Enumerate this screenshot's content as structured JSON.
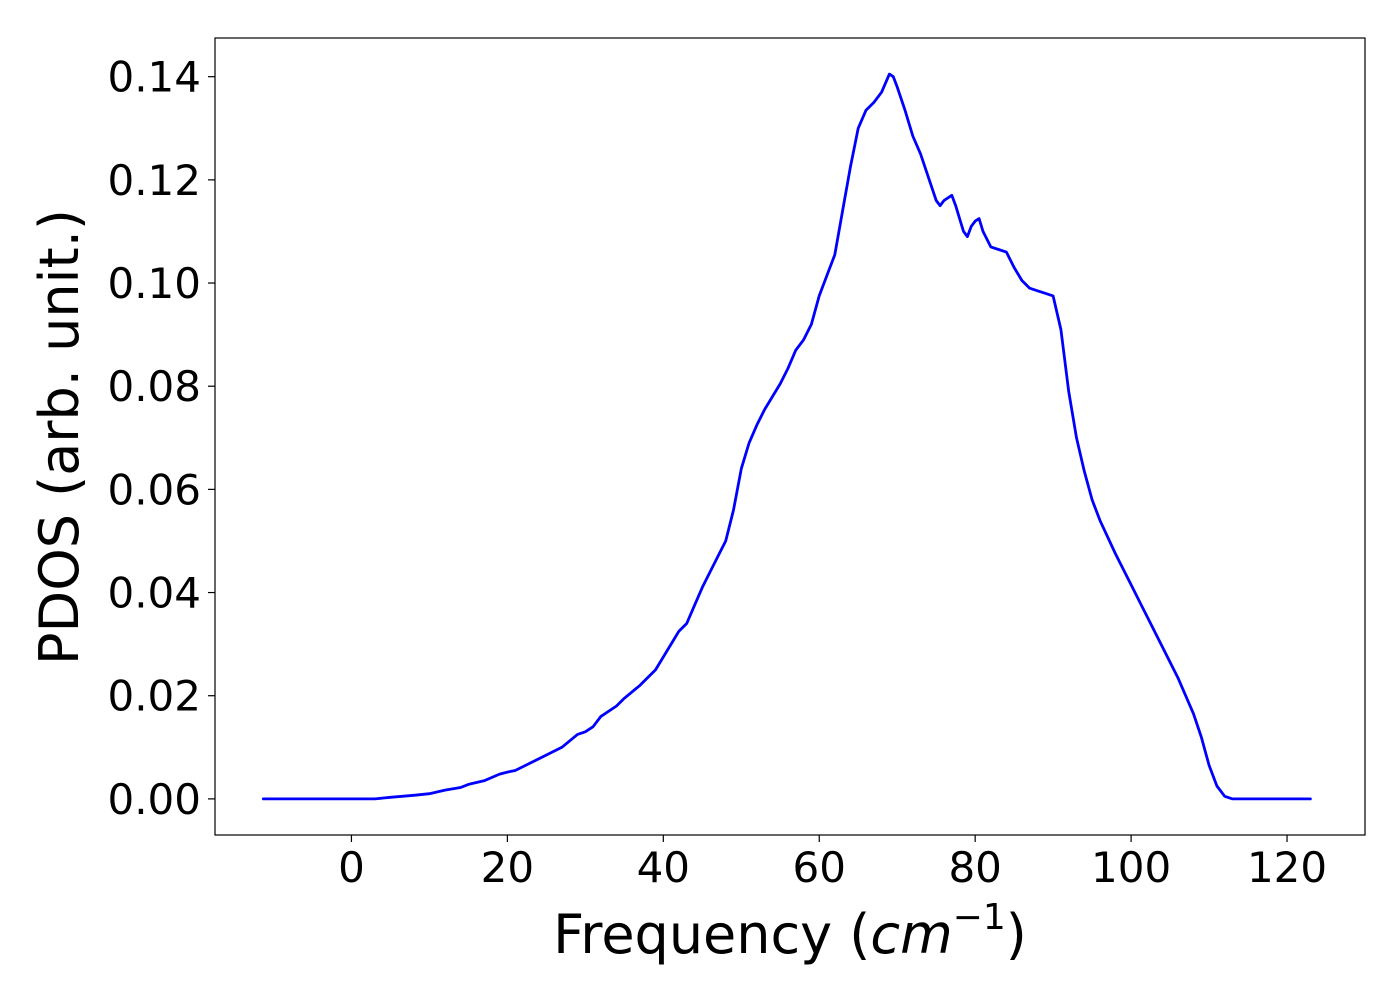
{
  "chart_data": {
    "type": "line",
    "title": "",
    "xlabel": "Frequency (",
    "xlabel_math": "cm",
    "xlabel_sup": "−1",
    "xlabel_end": ")",
    "ylabel": "PDOS (arb. unit.)",
    "xlim": [
      -17.5,
      130
    ],
    "ylim": [
      -0.007,
      0.1475
    ],
    "xticks": [
      0,
      20,
      40,
      60,
      80,
      100,
      120
    ],
    "xtick_labels": [
      "0",
      "20",
      "40",
      "60",
      "80",
      "100",
      "120"
    ],
    "yticks": [
      0.0,
      0.02,
      0.04,
      0.06,
      0.08,
      0.1,
      0.12,
      0.14
    ],
    "ytick_labels": [
      "0.00",
      "0.02",
      "0.04",
      "0.06",
      "0.08",
      "0.10",
      "0.12",
      "0.14"
    ],
    "grid": false,
    "line_color": "#0000ff",
    "series": [
      {
        "x": [
          -11.3,
          -5,
          0,
          3,
          5,
          8,
          10,
          12,
          14,
          15,
          17,
          19,
          20,
          21,
          23,
          25,
          27,
          29,
          30,
          31,
          32,
          34,
          35,
          37,
          39,
          40,
          41,
          42,
          43,
          44,
          45,
          46,
          47,
          48,
          49,
          50,
          51,
          52,
          53,
          54,
          55,
          56,
          57,
          58,
          59,
          60,
          61,
          62,
          63,
          64,
          65,
          66,
          67,
          68,
          69,
          69.5,
          70,
          71,
          72,
          73,
          74,
          75,
          75.5,
          76,
          77,
          77.5,
          78,
          78.5,
          79,
          79.5,
          80,
          80.5,
          81,
          82,
          83,
          84,
          85,
          86,
          87,
          88,
          89,
          90,
          91,
          92,
          93,
          94,
          95,
          96,
          98,
          100,
          102,
          104,
          106,
          108,
          109,
          110,
          111,
          112,
          113,
          114,
          115,
          117,
          120,
          123
        ],
        "values": [
          0.0,
          0.0,
          0.0,
          0.0,
          0.0003,
          0.0007,
          0.001,
          0.0017,
          0.0022,
          0.0028,
          0.0035,
          0.0048,
          0.0052,
          0.0055,
          0.007,
          0.0085,
          0.01,
          0.0125,
          0.013,
          0.014,
          0.016,
          0.018,
          0.0195,
          0.022,
          0.025,
          0.0275,
          0.03,
          0.0325,
          0.034,
          0.0375,
          0.041,
          0.044,
          0.047,
          0.05,
          0.056,
          0.064,
          0.069,
          0.0725,
          0.0755,
          0.078,
          0.0805,
          0.0835,
          0.087,
          0.089,
          0.092,
          0.0975,
          0.1015,
          0.1055,
          0.114,
          0.1225,
          0.13,
          0.1335,
          0.135,
          0.137,
          0.1405,
          0.14,
          0.138,
          0.1335,
          0.1285,
          0.125,
          0.1205,
          0.116,
          0.115,
          0.116,
          0.117,
          0.115,
          0.1125,
          0.11,
          0.109,
          0.111,
          0.112,
          0.1125,
          0.11,
          0.107,
          0.1065,
          0.106,
          0.103,
          0.1005,
          0.099,
          0.0985,
          0.098,
          0.0975,
          0.091,
          0.079,
          0.07,
          0.0635,
          0.058,
          0.054,
          0.0475,
          0.0415,
          0.0355,
          0.0295,
          0.0235,
          0.0165,
          0.012,
          0.0065,
          0.0025,
          0.0005,
          0.0,
          0.0,
          0.0,
          0.0,
          0.0,
          0.0
        ]
      }
    ]
  }
}
